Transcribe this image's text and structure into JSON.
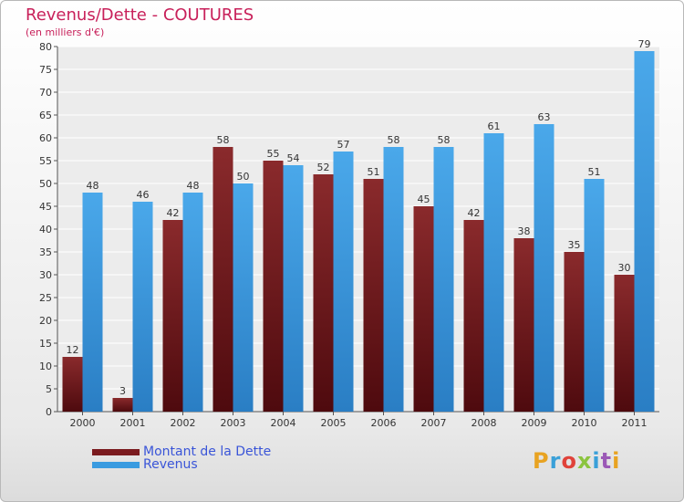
{
  "title": "Revenus/Dette - COUTURES",
  "subtitle": "(en milliers d'€)",
  "logo": {
    "text": "Proxiti",
    "colors": [
      "#e8a322",
      "#3aa0d8",
      "#e0423a",
      "#8bc43e",
      "#3aa0d8",
      "#9b59b6",
      "#e8a322"
    ]
  },
  "colors": {
    "dette": "#7a1a1e",
    "revenus": "#3a9be0",
    "title": "#c8205a",
    "legend_text": "#3a55d8"
  },
  "chart_data": {
    "type": "bar",
    "categories": [
      "2000",
      "2001",
      "2002",
      "2003",
      "2004",
      "2005",
      "2006",
      "2007",
      "2008",
      "2009",
      "2010",
      "2011"
    ],
    "series": [
      {
        "name": "Montant de la Dette",
        "values": [
          12,
          3,
          42,
          58,
          55,
          52,
          51,
          45,
          42,
          38,
          35,
          30
        ]
      },
      {
        "name": "Revenus",
        "values": [
          48,
          46,
          48,
          50,
          54,
          57,
          58,
          58,
          61,
          63,
          51,
          79
        ]
      }
    ],
    "ylim": [
      0,
      80
    ],
    "yticks": [
      0,
      5,
      10,
      15,
      20,
      25,
      30,
      35,
      40,
      45,
      50,
      55,
      60,
      65,
      70,
      75,
      80
    ],
    "grid": true,
    "legend_position": "bottom-left"
  }
}
